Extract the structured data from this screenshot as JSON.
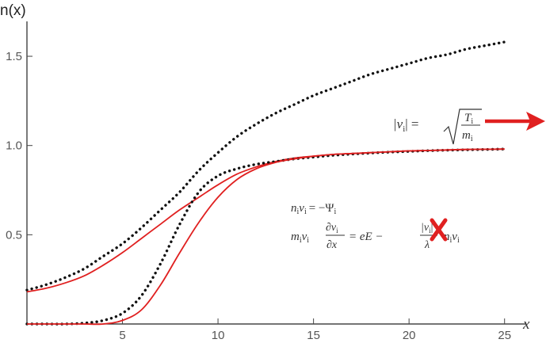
{
  "chart_data": {
    "type": "line",
    "title": "",
    "xlabel": "x",
    "ylabel": "n(x)",
    "xlim": [
      0,
      25.8
    ],
    "ylim": [
      0,
      1.66
    ],
    "x_ticks": [
      5,
      10,
      15,
      20,
      25
    ],
    "y_ticks": [
      0.5,
      1.0,
      1.5
    ],
    "grid": false,
    "colors": {
      "solid": "#e02020",
      "dotted": "#111111",
      "arrow": "#e02020",
      "cross": "#e02020"
    },
    "series": [
      {
        "style": "dotted",
        "x": [
          0,
          1,
          2,
          3,
          4,
          5,
          6,
          7,
          8,
          9,
          10,
          11,
          12,
          13,
          14,
          15,
          16,
          17,
          18,
          19,
          20,
          21,
          22,
          23,
          24,
          25
        ],
        "y": [
          0.19,
          0.22,
          0.26,
          0.31,
          0.38,
          0.45,
          0.54,
          0.64,
          0.74,
          0.86,
          0.96,
          1.05,
          1.12,
          1.18,
          1.23,
          1.28,
          1.32,
          1.36,
          1.4,
          1.43,
          1.46,
          1.49,
          1.51,
          1.54,
          1.56,
          1.58
        ]
      },
      {
        "style": "solid",
        "x": [
          0,
          1,
          2,
          3,
          4,
          5,
          6,
          7,
          8,
          9,
          10,
          11,
          12,
          13,
          14,
          15,
          16,
          17,
          18,
          19,
          20,
          21,
          22,
          23,
          24,
          25
        ],
        "y": [
          0.18,
          0.2,
          0.23,
          0.27,
          0.33,
          0.4,
          0.48,
          0.56,
          0.64,
          0.71,
          0.78,
          0.84,
          0.88,
          0.91,
          0.93,
          0.94,
          0.95,
          0.955,
          0.96,
          0.965,
          0.97,
          0.972,
          0.975,
          0.978,
          0.979,
          0.98
        ]
      },
      {
        "style": "dotted",
        "x": [
          0,
          1,
          2,
          3,
          4,
          5,
          6,
          7,
          8,
          9,
          10,
          11,
          12,
          13,
          14,
          15,
          16,
          17,
          18,
          19,
          20,
          21,
          22,
          23,
          24,
          25
        ],
        "y": [
          0,
          0,
          0,
          0.005,
          0.02,
          0.06,
          0.16,
          0.34,
          0.56,
          0.74,
          0.83,
          0.87,
          0.895,
          0.91,
          0.925,
          0.935,
          0.945,
          0.952,
          0.958,
          0.963,
          0.967,
          0.971,
          0.974,
          0.976,
          0.978,
          0.98
        ]
      },
      {
        "style": "solid",
        "x": [
          0,
          1,
          2,
          3,
          4,
          5,
          6,
          7,
          8,
          9,
          10,
          11,
          12,
          13,
          14,
          15,
          16,
          17,
          18,
          19,
          20,
          21,
          22,
          23,
          24,
          25
        ],
        "y": [
          0,
          0,
          0,
          0,
          0,
          0.02,
          0.08,
          0.22,
          0.4,
          0.57,
          0.71,
          0.81,
          0.87,
          0.905,
          0.925,
          0.94,
          0.95,
          0.955,
          0.96,
          0.965,
          0.97,
          0.972,
          0.975,
          0.978,
          0.979,
          0.98
        ]
      }
    ],
    "annotations": {
      "velocity": {
        "lhs": "|v",
        "sub": "i",
        "eq": "| =",
        "num": "T",
        "den": "m"
      },
      "eq1": {
        "lhs": "n",
        "mid": "v",
        "rhs": "= −Ψ",
        "sub": "i"
      },
      "eq2": {
        "lhs": "m",
        "mid": "v",
        "dnum": "∂v",
        "dden": "∂x",
        "rhs": "= eE −",
        "fnum": "|v",
        "fden": "λ",
        "tail": "n",
        "tail2": "v",
        "sub": "i",
        "bar": "|"
      }
    }
  }
}
